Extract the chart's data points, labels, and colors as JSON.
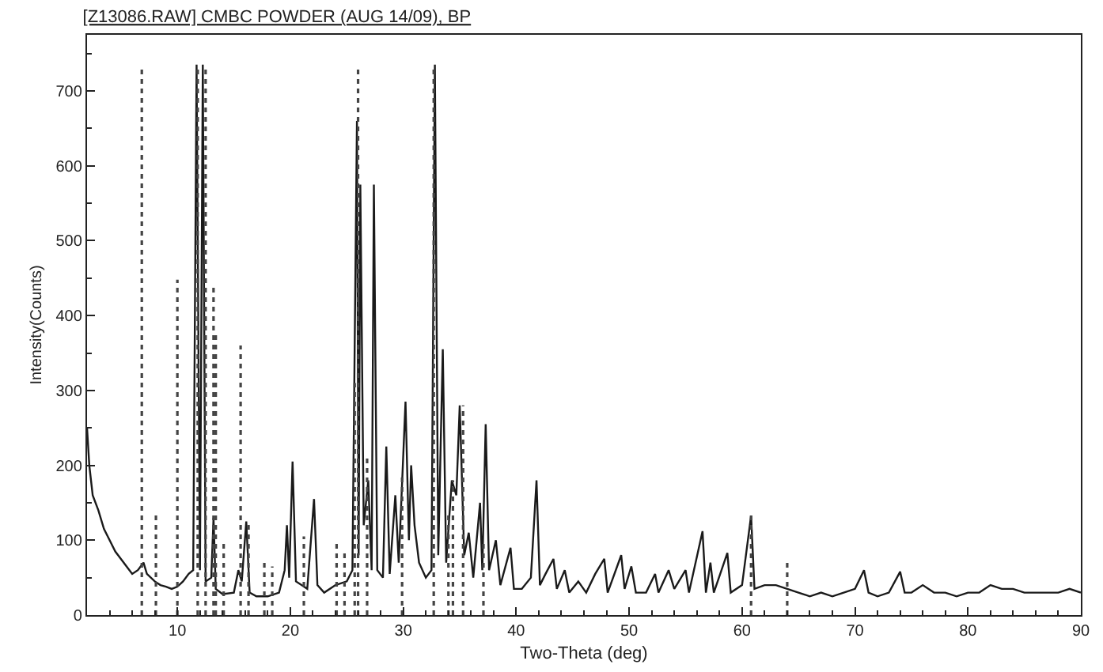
{
  "chart_data": {
    "type": "line",
    "title": "[Z13086.RAW] CMBC POWDER (AUG 14/09), BP",
    "xlabel": "Two-Theta (deg)",
    "ylabel": "Intensity(Counts)",
    "xlim": [
      2,
      90
    ],
    "ylim": [
      0,
      775
    ],
    "xticks": [
      10,
      20,
      30,
      40,
      50,
      60,
      70,
      80,
      90
    ],
    "yticks": [
      0,
      100,
      200,
      300,
      400,
      500,
      600,
      700
    ],
    "marker": "none",
    "series": [
      {
        "color": "#1a1a1a",
        "line_style": "solid",
        "x": [
          2.0,
          2.2,
          2.5,
          3,
          3.5,
          4,
          4.5,
          5,
          5.5,
          6,
          6.5,
          7,
          7.3,
          8,
          8.5,
          9,
          9.5,
          10,
          10.5,
          11,
          11.4,
          11.7,
          12.0,
          12.25,
          12.5,
          13.0,
          13.2,
          13.4,
          14,
          15,
          15.4,
          15.7,
          16.1,
          16.4,
          17,
          18,
          19,
          19.5,
          19.7,
          19.9,
          20.2,
          20.5,
          21,
          21.5,
          22.1,
          22.4,
          23,
          24,
          25,
          25.5,
          25.9,
          26.05,
          26.2,
          26.5,
          26.9,
          27.2,
          27.4,
          27.7,
          28.2,
          28.5,
          28.8,
          29.3,
          29.6,
          30.2,
          30.5,
          30.7,
          31.0,
          31.4,
          32,
          32.5,
          32.8,
          33.1,
          33.5,
          33.8,
          34.3,
          34.7,
          35.0,
          35.4,
          35.8,
          36.2,
          36.8,
          37.0,
          37.3,
          37.6,
          38.2,
          38.6,
          39.5,
          39.8,
          40.5,
          41.3,
          41.8,
          42.1,
          42.6,
          43.3,
          43.6,
          44.3,
          44.7,
          45.5,
          46.2,
          47.0,
          47.8,
          48.1,
          49.3,
          49.6,
          50.2,
          50.6,
          51.5,
          52.3,
          52.6,
          53.5,
          54,
          55,
          55.3,
          56.5,
          56.8,
          57.2,
          57.5,
          58.7,
          59,
          60,
          60.8,
          61.1,
          62,
          63,
          64,
          65,
          66,
          67,
          68,
          69,
          70,
          70.8,
          71.2,
          72,
          73,
          74.0,
          74.4,
          75,
          76,
          77,
          78,
          79,
          80,
          81,
          82,
          83,
          84,
          85,
          86,
          87,
          88,
          89,
          90
        ],
        "values": [
          250,
          200,
          160,
          140,
          115,
          100,
          85,
          75,
          65,
          55,
          60,
          70,
          55,
          45,
          40,
          38,
          35,
          38,
          45,
          55,
          60,
          735,
          60,
          735,
          45,
          50,
          130,
          35,
          28,
          30,
          60,
          45,
          125,
          30,
          25,
          25,
          30,
          60,
          120,
          50,
          205,
          45,
          40,
          35,
          155,
          40,
          30,
          40,
          45,
          60,
          660,
          80,
          575,
          120,
          180,
          60,
          575,
          60,
          50,
          225,
          55,
          160,
          70,
          285,
          100,
          200,
          120,
          70,
          50,
          60,
          735,
          80,
          355,
          70,
          180,
          160,
          280,
          80,
          110,
          50,
          150,
          60,
          255,
          60,
          100,
          40,
          90,
          35,
          35,
          50,
          180,
          40,
          55,
          75,
          35,
          60,
          30,
          45,
          30,
          55,
          75,
          30,
          80,
          35,
          65,
          30,
          30,
          55,
          30,
          60,
          35,
          60,
          30,
          112,
          30,
          70,
          30,
          83,
          30,
          40,
          133,
          35,
          40,
          40,
          35,
          30,
          25,
          30,
          25,
          30,
          35,
          60,
          30,
          25,
          30,
          58,
          30,
          30,
          40,
          30,
          30,
          25,
          30,
          30,
          40,
          35,
          35,
          30,
          30,
          30,
          30,
          35,
          30
        ]
      },
      {
        "color": "#444444",
        "line_style": "dotted",
        "x": [
          6.85,
          6.85,
          null,
          8.1,
          8.1,
          null,
          10.0,
          10.0,
          null,
          11.8,
          11.8,
          null,
          12.5,
          12.5,
          null,
          13.2,
          13.2,
          null,
          13.4,
          13.4,
          null,
          14.1,
          14.1,
          null,
          15.6,
          15.6,
          null,
          16.3,
          16.3,
          null,
          17.7,
          17.7,
          null,
          18.4,
          18.4,
          null,
          21.2,
          21.2,
          null,
          24.1,
          24.1,
          null,
          24.8,
          24.8,
          null,
          25.7,
          25.7,
          null,
          26.0,
          26.0,
          null,
          26.8,
          26.8,
          null,
          29.9,
          29.9,
          null,
          32.7,
          32.7,
          null,
          34.0,
          34.0,
          null,
          34.4,
          34.4,
          null,
          35.3,
          35.3,
          null,
          37.1,
          37.1,
          null,
          60.8,
          60.8,
          null,
          64.0,
          64.0
        ],
        "values": [
          0,
          730,
          null,
          0,
          135,
          null,
          0,
          448,
          null,
          0,
          735,
          null,
          0,
          735,
          null,
          0,
          440,
          null,
          0,
          375,
          null,
          0,
          95,
          null,
          0,
          360,
          null,
          0,
          125,
          null,
          0,
          75,
          null,
          0,
          65,
          null,
          0,
          105,
          null,
          0,
          95,
          null,
          0,
          85,
          null,
          0,
          310,
          null,
          0,
          735,
          null,
          0,
          215,
          null,
          0,
          190,
          null,
          0,
          735,
          null,
          0,
          135,
          null,
          0,
          180,
          null,
          0,
          280,
          null,
          0,
          100,
          null,
          0,
          133,
          null,
          0,
          75
        ]
      }
    ]
  }
}
